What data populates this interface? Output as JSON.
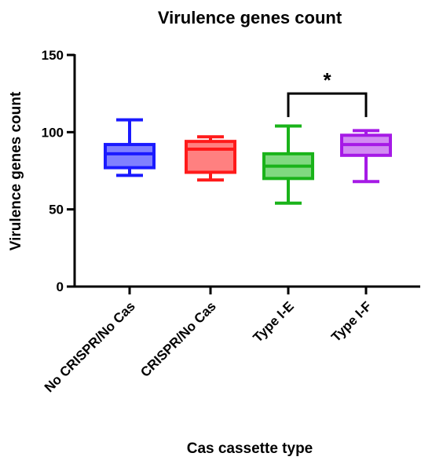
{
  "chart_data": {
    "type": "box",
    "title": "Virulence genes count",
    "xlabel": "Cas cassette type",
    "ylabel": "Virulence genes count",
    "ylim": [
      0,
      150
    ],
    "yticks": [
      0,
      50,
      100,
      150
    ],
    "grid": false,
    "legend": "none",
    "categories": [
      "No CRISPR/No Cas",
      "CRISPR/No Cas",
      "Type I-E",
      "Type I-F"
    ],
    "boxes": [
      {
        "category": "No CRISPR/No Cas",
        "min": 72,
        "q1": 77,
        "median": 86,
        "q3": 92,
        "max": 108,
        "color": "#1a1aff",
        "fill": "#8080ff"
      },
      {
        "category": "CRISPR/No Cas",
        "min": 69,
        "q1": 74,
        "median": 89,
        "q3": 94,
        "max": 97,
        "color": "#ff1a1a",
        "fill": "#ff8080"
      },
      {
        "category": "Type I-E",
        "min": 54,
        "q1": 70,
        "median": 78,
        "q3": 86,
        "max": 104,
        "color": "#1ab31a",
        "fill": "#80d980"
      },
      {
        "category": "Type I-F",
        "min": 68,
        "q1": 85,
        "median": 92,
        "q3": 98,
        "max": 101,
        "color": "#a61ae6",
        "fill": "#d28cf2"
      }
    ],
    "annotations": [
      {
        "from": "Type I-E",
        "to": "Type I-F",
        "y": 125,
        "label": "*"
      }
    ]
  }
}
